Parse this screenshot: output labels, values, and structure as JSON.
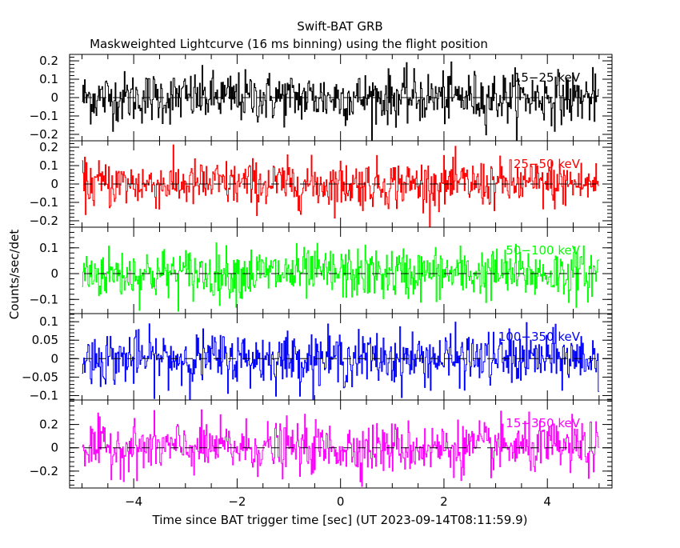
{
  "chart_data": {
    "type": "line",
    "title": "Swift-BAT GRB",
    "subtitle": "Maskweighted Lightcurve (16 ms binning) using the flight position",
    "xlabel": "Time since BAT trigger time [sec] (UT 2023-09-14T08:11:59.9)",
    "ylabel": "Counts/sec/det",
    "xlim": [
      -5.24,
      5.25
    ],
    "x_range_data": [
      -5.0,
      5.0
    ],
    "bin_size_sec": 0.016,
    "xticks": [
      -4,
      -2,
      0,
      2,
      4
    ],
    "xtick_labels": [
      "−4",
      "−2",
      "0",
      "2",
      "4"
    ],
    "panels": [
      {
        "name": "15-25 keV",
        "label": "15−25 keV",
        "color": "#000000",
        "ylim": [
          -0.235,
          0.235
        ],
        "noise_rms": 0.07,
        "yticks": [
          -0.2,
          -0.1,
          0,
          0.1,
          0.2
        ],
        "ytick_labels": [
          "−0.2",
          "−0.1",
          "0",
          "0.1",
          "0.2"
        ]
      },
      {
        "name": "25-50 keV",
        "label": "25−50 keV",
        "color": "#ff0000",
        "ylim": [
          -0.235,
          0.235
        ],
        "noise_rms": 0.065,
        "yticks": [
          -0.2,
          -0.1,
          0,
          0.1,
          0.2
        ],
        "ytick_labels": [
          "−0.2",
          "−0.1",
          "0",
          "0.1",
          "0.2"
        ]
      },
      {
        "name": "50-100 keV",
        "label": "50−100 keV",
        "color": "#00ff00",
        "ylim": [
          -0.155,
          0.18
        ],
        "noise_rms": 0.05,
        "yticks": [
          -0.1,
          0,
          0.1
        ],
        "ytick_labels": [
          "−0.1",
          "0",
          "0.1"
        ]
      },
      {
        "name": "100-350 keV",
        "label": "100−350 keV",
        "color": "#0000ff",
        "ylim": [
          -0.112,
          0.122
        ],
        "noise_rms": 0.036,
        "yticks": [
          -0.1,
          -0.05,
          0,
          0.05,
          0.1
        ],
        "ytick_labels": [
          "−0.1",
          "−0.05",
          "0",
          "0.05",
          "0.1"
        ]
      },
      {
        "name": "15-350 keV",
        "label": "15−350 keV",
        "color": "#ff00ff",
        "ylim": [
          -0.345,
          0.41
        ],
        "noise_rms": 0.11,
        "yticks": [
          -0.2,
          0,
          0.2
        ],
        "ytick_labels": [
          "−0.2",
          "0",
          "0.2"
        ]
      }
    ],
    "grid": false,
    "zero_line": "dashed"
  }
}
